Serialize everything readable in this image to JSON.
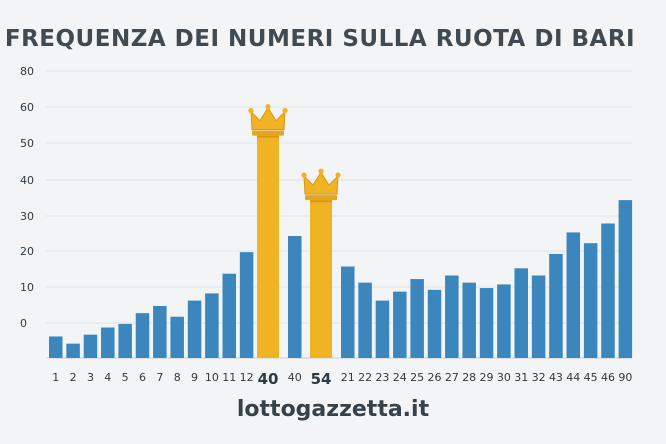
{
  "chart_data": {
    "type": "bar",
    "title": "FREQUENZA DEI NUMERI SULLA RUOTA DI BARI",
    "xlabel": "",
    "ylabel": "",
    "ylim": [
      0,
      80
    ],
    "yticks": [
      "80",
      "60",
      "50",
      "40",
      "30",
      "20",
      "10",
      "0"
    ],
    "grid": true,
    "categories": [
      "1",
      "2",
      "3",
      "4",
      "5",
      "6",
      "7",
      "8",
      "9",
      "10",
      "11",
      "12",
      "40",
      "40",
      "54",
      "21",
      "22",
      "23",
      "24",
      "25",
      "26",
      "27",
      "28",
      "29",
      "30",
      "31",
      "32",
      "43",
      "44",
      "45",
      "46",
      "90"
    ],
    "values": [
      6,
      4,
      6.5,
      8.5,
      9.5,
      12.5,
      14.5,
      11.5,
      16,
      18,
      23.5,
      29.5,
      62,
      34,
      44,
      25.5,
      21,
      16,
      18.5,
      22,
      19,
      23,
      21,
      19.5,
      20.5,
      25,
      23,
      29,
      35,
      32,
      37.5,
      44
    ],
    "highlight_color": "#f0b323",
    "bar_color": "#3a86bd",
    "highlighted": [
      "40",
      "54"
    ],
    "crown_icon": "crown-icon"
  },
  "footer": {
    "site": "lottogazzetta.it"
  }
}
